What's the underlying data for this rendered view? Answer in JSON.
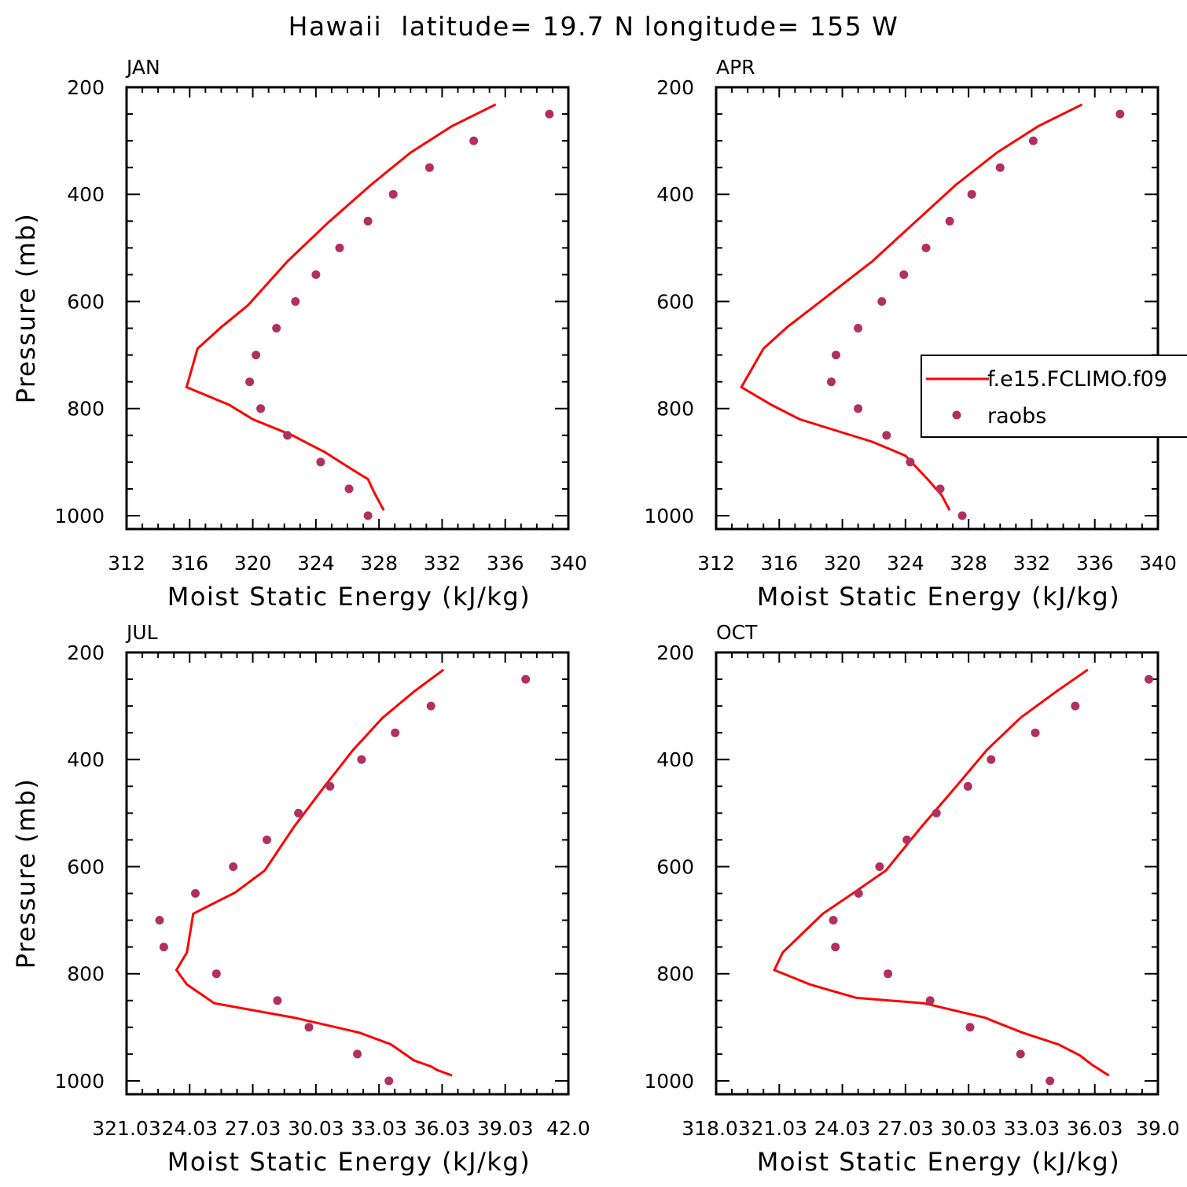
{
  "figure": {
    "title": "Hawaii  latitude= 19.7 N longitude= 155 W"
  },
  "legend": {
    "entries": [
      {
        "label": "f.e15.FCLIMO.f09",
        "type": "line",
        "color": "#ff0000"
      },
      {
        "label": "raobs",
        "type": "marker",
        "color": "#b03060"
      }
    ]
  },
  "chart_data": [
    {
      "type": "line",
      "panel_label": "JAN",
      "xlabel": "Moist Static Energy (kJ/kg)",
      "ylabel": "Pressure (mb)",
      "xlim": [
        312,
        340
      ],
      "ylim": [
        1025,
        200
      ],
      "x_tick_labels": [
        "312",
        "316",
        "320",
        "324",
        "328",
        "332",
        "336",
        "340"
      ],
      "y_tick_labels": [
        "200",
        "400",
        "600",
        "800",
        "1000"
      ],
      "series": [
        {
          "name": "f.e15.FCLIMO.f09",
          "kind": "line",
          "color": "#ff0000",
          "x": [
            335.4,
            332.6,
            330.0,
            327.5,
            324.8,
            322.2,
            319.7,
            318.0,
            316.5,
            315.8,
            318.5,
            320.0,
            322.5,
            324.6,
            326.2,
            327.3,
            327.7,
            328.3
          ],
          "y": [
            232,
            273,
            322,
            382,
            452,
            525,
            607,
            648,
            688,
            760,
            793,
            820,
            850,
            882,
            912,
            932,
            957,
            990
          ]
        },
        {
          "name": "raobs",
          "kind": "scatter",
          "color": "#b03060",
          "x": [
            338.8,
            334.0,
            331.2,
            328.9,
            327.3,
            325.5,
            324.0,
            322.7,
            321.5,
            320.2,
            319.8,
            320.5,
            322.2,
            324.3,
            326.1,
            327.3
          ],
          "y": [
            250,
            300,
            350,
            400,
            450,
            500,
            550,
            600,
            650,
            700,
            750,
            800,
            850,
            900,
            950,
            1000
          ]
        }
      ]
    },
    {
      "type": "line",
      "panel_label": "APR",
      "xlabel": "Moist Static Energy (kJ/kg)",
      "ylabel": "",
      "xlim": [
        312,
        340
      ],
      "ylim": [
        1025,
        200
      ],
      "x_tick_labels": [
        "312",
        "316",
        "320",
        "324",
        "328",
        "332",
        "336",
        "340"
      ],
      "y_tick_labels": [
        "200",
        "400",
        "600",
        "800",
        "1000"
      ],
      "series": [
        {
          "name": "f.e15.FCLIMO.f09",
          "kind": "line",
          "color": "#ff0000",
          "x": [
            335.2,
            332.4,
            329.8,
            327.2,
            324.6,
            321.9,
            318.3,
            316.5,
            315.0,
            313.6,
            315.5,
            317.3,
            319.8,
            321.9,
            324.0,
            325.4,
            326.3,
            326.8
          ],
          "y": [
            232,
            273,
            322,
            382,
            452,
            525,
            607,
            648,
            688,
            760,
            793,
            820,
            843,
            862,
            888,
            932,
            962,
            990
          ]
        },
        {
          "name": "raobs",
          "kind": "scatter",
          "color": "#b03060",
          "x": [
            337.6,
            332.1,
            330.0,
            328.2,
            326.8,
            325.3,
            323.9,
            322.5,
            321.0,
            319.6,
            319.3,
            321.0,
            322.8,
            324.3,
            326.2,
            327.6
          ],
          "y": [
            250,
            300,
            350,
            400,
            450,
            500,
            550,
            600,
            650,
            700,
            750,
            800,
            850,
            900,
            950,
            1000
          ]
        }
      ]
    },
    {
      "type": "line",
      "panel_label": "JUL",
      "xlabel": "Moist Static Energy (kJ/kg)",
      "ylabel": "Pressure (mb)",
      "xlim": [
        321.03,
        342.03
      ],
      "ylim": [
        1025,
        200
      ],
      "x_tick_labels": [
        "321.03",
        "24.03",
        "27.03",
        "30.03",
        "33.03",
        "36.03",
        "39.03",
        "42.0"
      ],
      "y_tick_labels": [
        "200",
        "400",
        "600",
        "800",
        "1000"
      ],
      "series": [
        {
          "name": "f.e15.FCLIMO.f09",
          "kind": "line",
          "color": "#ff0000",
          "x": [
            336.1,
            334.7,
            333.2,
            331.8,
            330.4,
            329.0,
            327.6,
            326.2,
            324.2,
            323.9,
            323.4,
            323.9,
            325.2,
            329.0,
            332.1,
            333.6,
            334.7,
            335.5,
            335.8,
            336.5
          ],
          "y": [
            232,
            273,
            322,
            382,
            452,
            525,
            607,
            648,
            688,
            760,
            793,
            820,
            855,
            882,
            910,
            932,
            962,
            973,
            980,
            990
          ]
        },
        {
          "name": "raobs",
          "kind": "scatter",
          "color": "#b03060",
          "x": [
            340.0,
            335.5,
            333.8,
            332.2,
            330.7,
            329.2,
            327.7,
            326.1,
            324.3,
            322.6,
            322.8,
            325.3,
            328.2,
            329.7,
            332.0,
            333.5
          ],
          "y": [
            250,
            300,
            350,
            400,
            450,
            500,
            550,
            600,
            650,
            700,
            750,
            800,
            850,
            900,
            950,
            1000
          ]
        }
      ]
    },
    {
      "type": "line",
      "panel_label": "OCT",
      "xlabel": "Moist Static Energy (kJ/kg)",
      "ylabel": "",
      "xlim": [
        318.03,
        339.03
      ],
      "ylim": [
        1025,
        200
      ],
      "x_tick_labels": [
        "318.03",
        "21.03",
        "24.03",
        "27.03",
        "30.03",
        "33.03",
        "36.03",
        "39.0"
      ],
      "y_tick_labels": [
        "200",
        "400",
        "600",
        "800",
        "1000"
      ],
      "series": [
        {
          "name": "f.e15.FCLIMO.f09",
          "kind": "line",
          "color": "#ff0000",
          "x": [
            335.7,
            334.2,
            332.5,
            330.9,
            329.4,
            327.8,
            326.1,
            324.6,
            323.1,
            321.2,
            320.8,
            322.5,
            324.7,
            327.9,
            330.8,
            332.6,
            334.3,
            335.3,
            335.9,
            336.7
          ],
          "y": [
            232,
            273,
            322,
            382,
            452,
            525,
            607,
            648,
            688,
            760,
            793,
            820,
            845,
            855,
            882,
            910,
            932,
            952,
            970,
            990
          ]
        },
        {
          "name": "raobs",
          "kind": "scatter",
          "color": "#b03060",
          "x": [
            338.6,
            335.1,
            333.2,
            331.1,
            330.0,
            328.5,
            327.1,
            325.8,
            324.8,
            323.6,
            323.7,
            326.2,
            328.2,
            330.1,
            332.5,
            333.9
          ],
          "y": [
            250,
            300,
            350,
            400,
            450,
            500,
            550,
            600,
            650,
            700,
            750,
            800,
            850,
            900,
            950,
            1000
          ]
        }
      ]
    }
  ]
}
